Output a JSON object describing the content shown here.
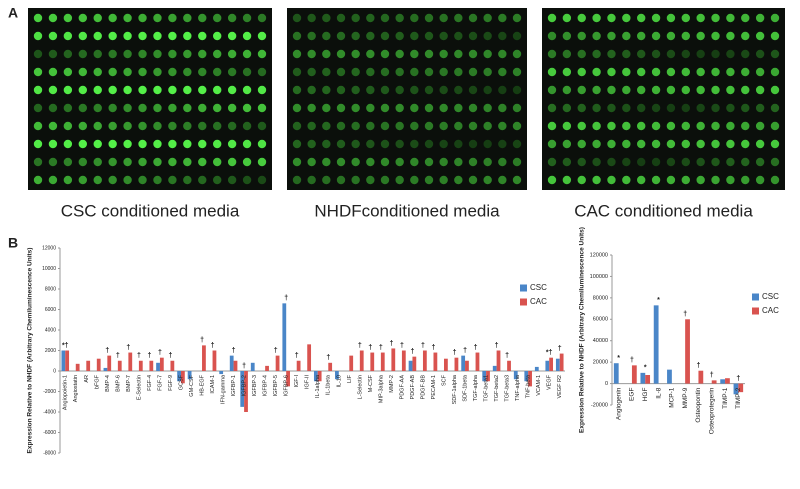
{
  "panel_a": {
    "label": "A",
    "captions": [
      "CSC conditioned media",
      "NHDFconditioned media",
      "CAC conditioned media"
    ]
  },
  "panel_b": {
    "label": "B"
  },
  "chart_data": [
    {
      "type": "bar",
      "y_label": "Expression Relative to NHDF (Arbitrary Chemiluminescence Units)",
      "categories": [
        "Angiopoietin-1",
        "Angiostatin",
        "AR",
        "bFGF",
        "BMP-4",
        "BMP-6",
        "BMP-7",
        "E-Selectin",
        "FGF-4",
        "FGF-7",
        "FGF-9",
        "GCSF",
        "GM-CSF",
        "HB-EGF",
        "ICAM-1",
        "IFN-gamma",
        "IGFBP-1",
        "IGFBP-2",
        "IGFBP-3",
        "IGFBP-4",
        "IGFBP-5",
        "IGFBP-6",
        "IGF-I",
        "IGF-II",
        "IL-1alpha",
        "IL-1beta",
        "IL-10",
        "LIF",
        "L-Selectin",
        "M-CSF",
        "MIP-3alpha",
        "MMP-2",
        "PDGF-AA",
        "PDGF-AB",
        "PDGF-BB",
        "PECAM-1",
        "SCF",
        "SDF-1alpha",
        "SDF-1beta",
        "TGF-alpha",
        "TGF-beta1",
        "TGF-beta2",
        "TGF-beta3",
        "TNF-alpha",
        "TNF-beta",
        "VCAM-1",
        "VEGF",
        "VEGF R2"
      ],
      "series": [
        {
          "name": "CSC",
          "color": "#4a86c8",
          "values": [
            2000,
            0,
            0,
            0,
            300,
            0,
            0,
            0,
            0,
            800,
            0,
            -1000,
            -800,
            0,
            0,
            -300,
            1500,
            -3500,
            800,
            0,
            0,
            6600,
            0,
            0,
            -1000,
            0,
            -800,
            0,
            0,
            0,
            0,
            0,
            0,
            1000,
            0,
            0,
            0,
            0,
            1500,
            0,
            -1000,
            500,
            0,
            -800,
            -1000,
            400,
            1000,
            1200
          ]
        },
        {
          "name": "CAC",
          "color": "#d9534f",
          "values": [
            2000,
            700,
            1000,
            1200,
            1500,
            1000,
            1800,
            1000,
            1000,
            1300,
            1000,
            -1200,
            0,
            2500,
            2000,
            0,
            1000,
            -4000,
            0,
            500,
            1500,
            -1500,
            1000,
            2600,
            -1000,
            800,
            0,
            1500,
            2000,
            1800,
            1800,
            2200,
            2000,
            1400,
            2000,
            1800,
            1200,
            1300,
            1000,
            1800,
            -1000,
            2000,
            1000,
            0,
            -1500,
            0,
            1300,
            1700
          ]
        }
      ],
      "annotations": [
        "*†",
        null,
        null,
        null,
        "†",
        "†",
        "†",
        "†",
        "†",
        "†",
        "†",
        null,
        null,
        "†",
        "†",
        null,
        "†",
        "†",
        null,
        null,
        "†",
        "†",
        "†",
        null,
        null,
        "†",
        null,
        null,
        "†",
        "†",
        "†",
        "†",
        "†",
        "†",
        "†",
        "†",
        null,
        "†",
        "†",
        "†",
        null,
        "†",
        "†",
        null,
        null,
        null,
        "*†",
        "†"
      ],
      "ylim": [
        -8000,
        12000
      ],
      "yticks": [
        -8000,
        -6000,
        -4000,
        -2000,
        0,
        2000,
        4000,
        6000,
        8000,
        10000,
        12000
      ]
    },
    {
      "type": "bar",
      "y_label": "Expression Relative to NHDF (Arbitrary Chemiluminescence Units)",
      "categories": [
        "Angiogenin",
        "EGF",
        "HGF",
        "IL-8",
        "MCP-1",
        "MMP-9",
        "Osteopontin",
        "Osteoprotegerin",
        "TIMP-1",
        "TIMP-2"
      ],
      "series": [
        {
          "name": "CSC",
          "color": "#4a86c8",
          "values": [
            19000,
            0,
            10000,
            73000,
            13000,
            0,
            0,
            0,
            4000,
            -10000
          ]
        },
        {
          "name": "CAC",
          "color": "#d9534f",
          "values": [
            0,
            17000,
            8000,
            0,
            0,
            60000,
            12000,
            3000,
            5000,
            -8000
          ]
        }
      ],
      "annotations": [
        "*",
        "†",
        "*",
        "*",
        null,
        "†",
        "†",
        "†",
        null,
        "†"
      ],
      "ylim": [
        -20000,
        120000
      ],
      "yticks": [
        -20000,
        0,
        20000,
        40000,
        60000,
        80000,
        100000,
        120000
      ]
    }
  ]
}
